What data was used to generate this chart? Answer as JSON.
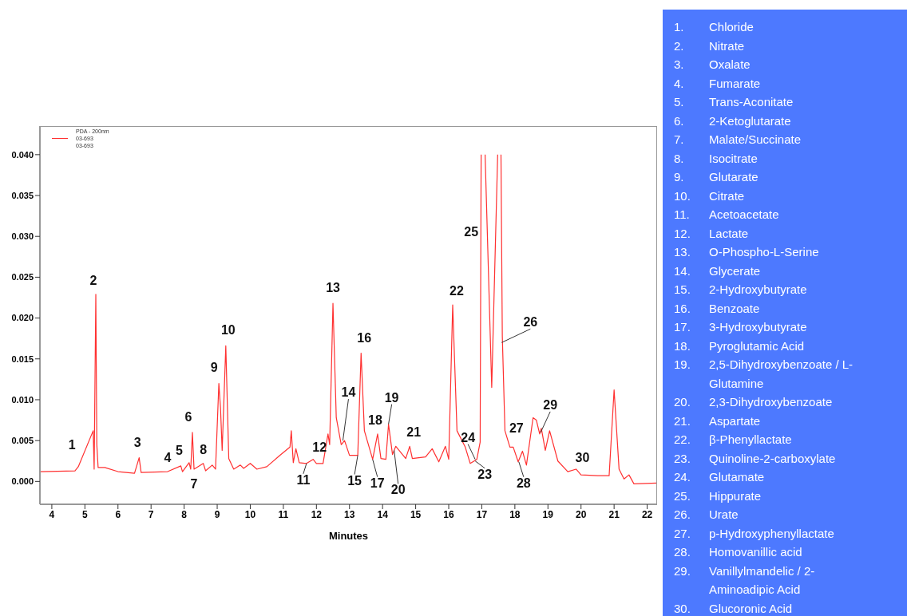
{
  "chart_data": {
    "type": "line",
    "xlabel": "Minutes",
    "legend_title": "PDA - 200nm",
    "legend": "top left",
    "marker": "none",
    "xlim": [
      3.64,
      22.3
    ],
    "xticks": [
      4,
      5,
      6,
      7,
      8,
      9,
      10,
      11,
      12,
      13,
      14,
      15,
      16,
      17,
      18,
      19,
      20,
      21,
      22
    ],
    "ylim": [
      -0.0028,
      0.0435
    ],
    "yticks": [
      {
        "value": 0,
        "label": "0.000"
      },
      {
        "value": 0.005,
        "label": "0.005"
      },
      {
        "value": 0.01,
        "label": "0.010"
      },
      {
        "value": 0.015,
        "label": "0.015"
      },
      {
        "value": 0.02,
        "label": "0.020"
      },
      {
        "value": 0.025,
        "label": "0.025"
      },
      {
        "value": 0.03,
        "label": "0.030"
      },
      {
        "value": 0.035,
        "label": "0.035"
      },
      {
        "value": 0.04,
        "label": "0.040"
      }
    ],
    "series": [
      {
        "name": "03-693",
        "color": "#ff3030",
        "x": [
          3.64,
          4.7,
          4.8,
          5.25,
          5.28,
          5.33,
          5.36,
          5.4,
          5.6,
          6.0,
          6.5,
          6.64,
          6.7,
          7.5,
          7.9,
          7.95,
          8.15,
          8.2,
          8.25,
          8.3,
          8.58,
          8.65,
          8.85,
          8.95,
          9.05,
          9.1,
          9.15,
          9.26,
          9.35,
          9.5,
          9.7,
          9.8,
          10.0,
          10.2,
          10.5,
          10.9,
          11.2,
          11.24,
          11.3,
          11.38,
          11.48,
          11.7,
          11.9,
          12.0,
          12.2,
          12.35,
          12.4,
          12.5,
          12.6,
          12.75,
          12.85,
          13.0,
          13.25,
          13.35,
          13.45,
          13.7,
          13.85,
          13.95,
          14.1,
          14.18,
          14.3,
          14.4,
          14.7,
          14.82,
          14.9,
          15.3,
          15.5,
          15.7,
          15.9,
          16.0,
          16.12,
          16.25,
          16.5,
          16.65,
          16.85,
          16.95,
          16.98,
          17.05,
          17.1,
          17.3,
          17.48,
          17.52,
          17.58,
          17.62,
          17.7,
          17.85,
          17.95,
          18.1,
          18.23,
          18.35,
          18.55,
          18.65,
          18.75,
          18.8,
          18.92,
          19.05,
          19.3,
          19.6,
          19.85,
          20.0,
          20.5,
          20.85,
          21.0,
          21.15,
          21.3,
          21.45,
          21.6,
          22.3
        ],
        "values": [
          0.0012,
          0.0013,
          0.0018,
          0.0062,
          0.0015,
          0.0229,
          0.0045,
          0.0017,
          0.0017,
          0.0012,
          0.001,
          0.0029,
          0.0011,
          0.0012,
          0.0019,
          0.0012,
          0.0023,
          0.0015,
          0.006,
          0.0015,
          0.0022,
          0.0013,
          0.002,
          0.0015,
          0.012,
          0.009,
          0.0038,
          0.0166,
          0.0028,
          0.0015,
          0.002,
          0.0016,
          0.0022,
          0.0015,
          0.0018,
          0.0032,
          0.0042,
          0.0062,
          0.0023,
          0.004,
          0.0023,
          0.0022,
          0.0027,
          0.0022,
          0.0022,
          0.0058,
          0.0045,
          0.0218,
          0.0078,
          0.0045,
          0.005,
          0.0032,
          0.0032,
          0.0157,
          0.0062,
          0.0027,
          0.0058,
          0.0028,
          0.0027,
          0.007,
          0.0033,
          0.0043,
          0.0028,
          0.0043,
          0.0028,
          0.003,
          0.004,
          0.0024,
          0.0043,
          0.0027,
          0.0216,
          0.0062,
          0.0042,
          0.0022,
          0.0027,
          0.0048,
          0.04,
          null,
          0.04,
          0.0115,
          0.04,
          null,
          0.04,
          0.0178,
          0.0062,
          0.0042,
          0.0042,
          0.0024,
          0.0037,
          0.002,
          0.0078,
          0.0075,
          0.0058,
          0.0065,
          0.0038,
          0.0062,
          0.0025,
          0.0012,
          0.0015,
          0.0008,
          0.0007,
          0.0007,
          0.0112,
          0.0015,
          0.0003,
          0.0008,
          -0.0003,
          -0.0002
        ]
      }
    ],
    "annotations": [
      "03-693",
      {
        "text": "1",
        "x": 4.85,
        "y": 0.003
      },
      {
        "text": "2",
        "x": 5.33,
        "y": 0.0229
      },
      {
        "text": "3",
        "x": 6.64,
        "y": 0.0029
      },
      {
        "text": "4",
        "x": 7.5,
        "y": 0.0012
      },
      {
        "text": "5",
        "x": 7.9,
        "y": 0.0019
      },
      {
        "text": "6",
        "x": 8.25,
        "y": 0.006
      },
      {
        "text": "7",
        "x": 8.3,
        "y": 0.0015
      },
      {
        "text": "8",
        "x": 8.58,
        "y": 0.0022
      },
      {
        "text": "9",
        "x": 9.05,
        "y": 0.012
      },
      {
        "text": "10",
        "x": 9.26,
        "y": 0.0166
      },
      {
        "text": "11",
        "x": 11.7,
        "y": 0.0022
      },
      {
        "text": "12",
        "x": 11.9,
        "y": 0.0027
      },
      {
        "text": "13",
        "x": 12.5,
        "y": 0.0218
      },
      {
        "text": "14",
        "x": 12.8,
        "y": 0.005
      },
      {
        "text": "15",
        "x": 13.25,
        "y": 0.0032
      },
      {
        "text": "16",
        "x": 13.35,
        "y": 0.0157
      },
      {
        "text": "17",
        "x": 13.7,
        "y": 0.0027
      },
      {
        "text": "18",
        "x": 13.85,
        "y": 0.0058
      },
      {
        "text": "19",
        "x": 14.18,
        "y": 0.007
      },
      {
        "text": "20",
        "x": 14.35,
        "y": 0.0038
      },
      {
        "text": "21",
        "x": 14.82,
        "y": 0.0043
      },
      {
        "text": "22",
        "x": 16.12,
        "y": 0.0216
      },
      {
        "text": "23",
        "x": 16.8,
        "y": 0.0025
      },
      {
        "text": "24",
        "x": 16.8,
        "y": 0.0027
      },
      {
        "text": "25",
        "x": 16.97,
        "y": 0.03
      },
      {
        "text": "26",
        "x": 17.6,
        "y": 0.017
      },
      {
        "text": "27",
        "x": 17.95,
        "y": 0.0042
      },
      {
        "text": "28",
        "x": 18.12,
        "y": 0.0024
      },
      {
        "text": "29",
        "x": 18.78,
        "y": 0.006
      },
      {
        "text": "30",
        "x": 19.85,
        "y": 0.0015
      },
      "1. Chloride",
      "2. Nitrate",
      "3. Oxalate",
      "4. Fumarate",
      "5. Trans-Aconitate",
      "6. 2-Ketoglutarate",
      "7. Malate/Succinate",
      "8. Isocitrate",
      "9. Glutarate",
      "10. Citrate",
      "11. Acetoacetate",
      "12. Lactate",
      "13. O-Phospho-L-Serine",
      "14. Glycerate",
      "15. 2-Hydroxybutyrate",
      "16. Benzoate",
      "17. 3-Hydroxybutyrate",
      "18. Pyroglutamic Acid",
      "19. 2,5-Dihydroxybenzoate / L-Glutamine",
      "20. 2,3-Dihydroxybenzoate",
      "21. Aspartate",
      "22. β-Phenyllactate",
      "23. Quinoline-2-carboxylate",
      "24. Glutamate",
      "25. Hippurate",
      "26. Urate",
      "27. p-Hydroxyphenyllactate",
      "28. Homovanillic acid",
      "29. Vanillylmandelic / 2-Aminoadipic Acid",
      "30. Glucoronic Acid"
    ]
  }
}
